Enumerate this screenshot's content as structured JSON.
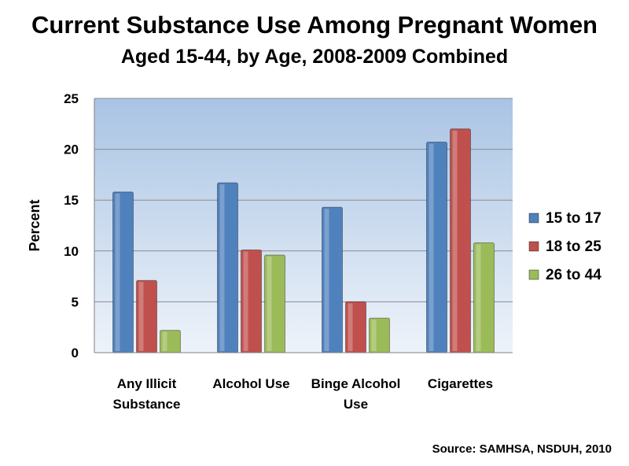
{
  "chart_data": {
    "type": "bar",
    "title": "Current Substance Use Among Pregnant Women",
    "subtitle": "Aged 15-44, by Age, 2008-2009 Combined",
    "xlabel": "",
    "ylabel": "Percent",
    "ylim": [
      0,
      25
    ],
    "yticks": [
      "0",
      "5",
      "10",
      "15",
      "20",
      "25"
    ],
    "categories": [
      [
        "Any Illicit",
        "Substance"
      ],
      [
        "Alcohol Use"
      ],
      [
        "Binge Alcohol",
        "Use"
      ],
      [
        "Cigarettes"
      ]
    ],
    "series": [
      {
        "name": "15 to 17",
        "values": [
          15.8,
          16.7,
          14.3,
          20.7
        ],
        "color": "#4f81bd"
      },
      {
        "name": "18 to 25",
        "values": [
          7.1,
          10.1,
          5.0,
          22.0
        ],
        "color": "#c0504d"
      },
      {
        "name": "26 to 44",
        "values": [
          2.2,
          9.6,
          3.4,
          10.8
        ],
        "color": "#9bbb59"
      }
    ],
    "grid": true,
    "legend": "right"
  },
  "source": "Source: SAMHSA, NSDUH, 2010"
}
